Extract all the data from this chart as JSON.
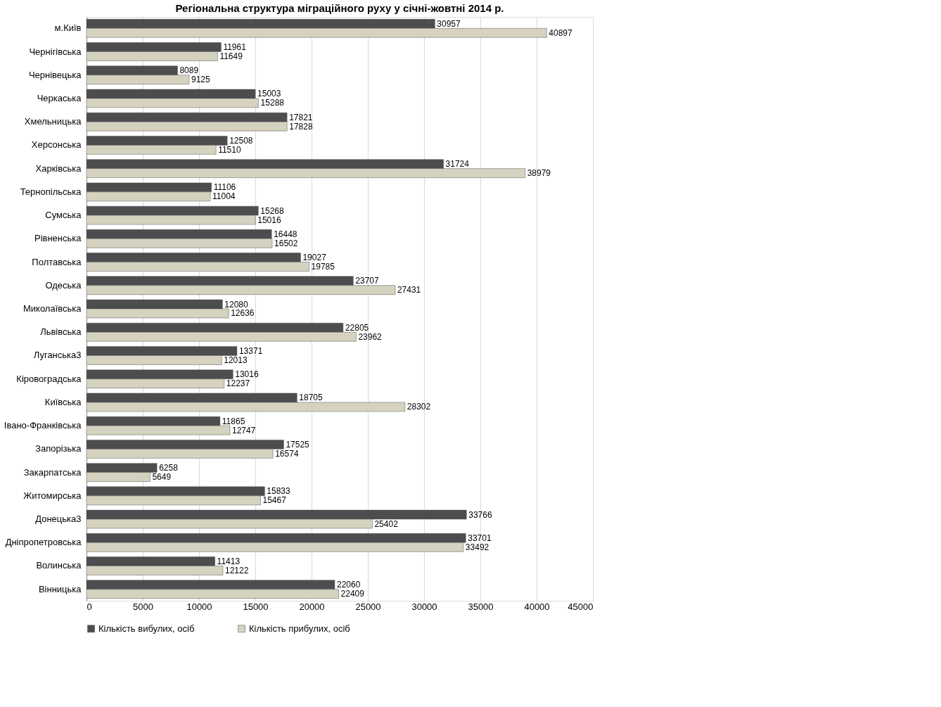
{
  "chart_data": {
    "type": "bar",
    "orientation": "horizontal",
    "title": "Регіональна структура міграційного руху у січні-жовтні 2014 р.",
    "categories": [
      "м.Київ",
      "Чернігівська",
      "Чернівецька",
      "Черкаська",
      "Хмельницька",
      "Херсонська",
      "Харківська",
      "Тернопільська",
      "Сумська",
      "Рівненська",
      "Полтавська",
      "Одеська",
      "Миколаївська",
      "Львівська",
      "Луганська3",
      "Кіровоградська",
      "Київська",
      "Івано-Франківська",
      "Запорізька",
      "Закарпатська",
      "Житомирська",
      "Донецька3",
      "Дніпропетровська",
      "Волинська",
      "Вінницька"
    ],
    "series": [
      {
        "name": "Кількість вибулих, осіб",
        "color": "#4d4d4f",
        "values": [
          30957,
          11961,
          8089,
          15003,
          17821,
          12508,
          31724,
          11106,
          15268,
          16448,
          19027,
          23707,
          12080,
          22805,
          13371,
          13016,
          18705,
          11865,
          17525,
          6258,
          15833,
          33766,
          33701,
          11413,
          22060
        ]
      },
      {
        "name": "Кількість прибулих, осіб",
        "color": "#d5d3c0",
        "values": [
          40897,
          11649,
          9125,
          15288,
          17828,
          11510,
          38979,
          11004,
          15016,
          16502,
          19785,
          27431,
          12636,
          23962,
          12013,
          12237,
          28302,
          12747,
          16574,
          5649,
          15467,
          25402,
          33492,
          12122,
          22409
        ]
      }
    ],
    "xlim": [
      0,
      45000
    ],
    "xticks": [
      0,
      5000,
      10000,
      15000,
      20000,
      25000,
      30000,
      35000,
      40000,
      45000
    ],
    "grid": "x",
    "legend": "bottom",
    "data_labels": true
  }
}
